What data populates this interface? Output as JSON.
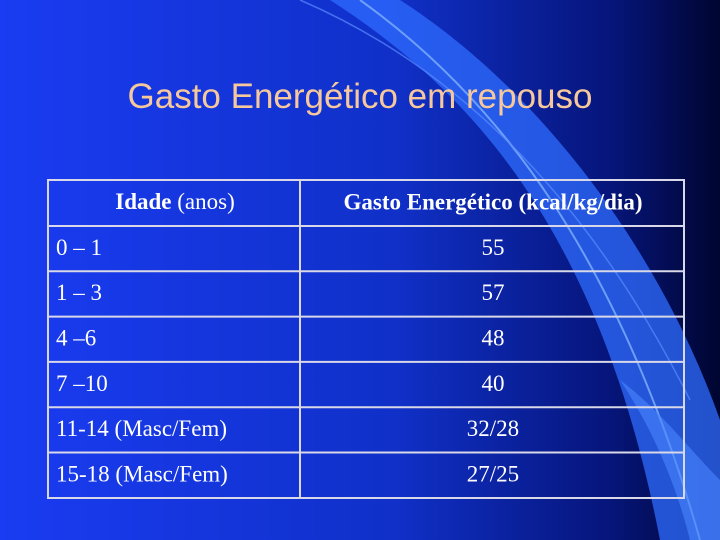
{
  "title": "Gasto Energético em repouso",
  "table": {
    "header": {
      "age": {
        "bold": "Idade",
        "rest": "(anos)"
      },
      "energy": "Gasto Energético (kcal/kg/dia)"
    },
    "rows": [
      [
        "0 – 1",
        "55"
      ],
      [
        "1 – 3",
        "57"
      ],
      [
        "4 –6",
        "48"
      ],
      [
        "7 –10",
        "40"
      ],
      [
        "11-14 (Masc/Fem)",
        "32/28"
      ],
      [
        "15-18 (Masc/Fem)",
        "27/25"
      ]
    ]
  }
}
